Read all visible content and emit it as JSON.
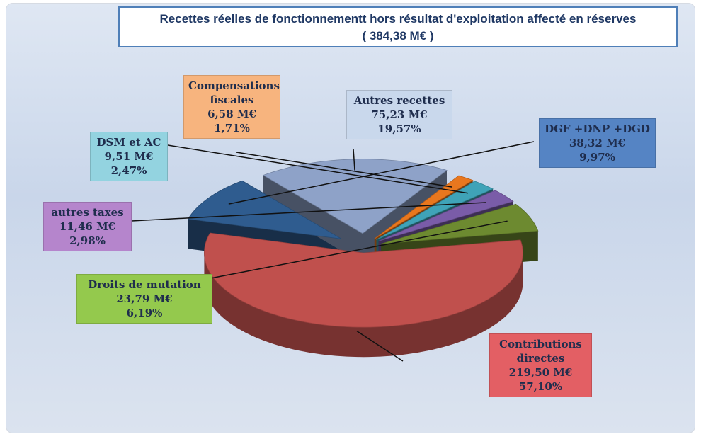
{
  "chart_data": {
    "type": "pie",
    "title": "Recettes réelles de fonctionnementt hors résultat d'exploitation affecté en réserves",
    "subtitle": "( 384,38 M€ )",
    "categories": [
      "Contributions directes",
      "DGF +DNP +DGD",
      "Autres recettes",
      "Compensations fiscales",
      "DSM et AC",
      "autres taxes",
      "Droits de mutation"
    ],
    "values": [
      219.5,
      38.32,
      75.23,
      6.58,
      9.51,
      11.46,
      23.79
    ],
    "value_labels": [
      "219,50 M€",
      "38,32 M€",
      "75,23 M€",
      "6,58 M€",
      "9,51 M€",
      "11,46 M€",
      "23,79 M€"
    ],
    "percentages": [
      57.1,
      9.97,
      19.57,
      1.71,
      2.47,
      2.98,
      6.19
    ],
    "percentage_labels": [
      "57,10%",
      "9,97%",
      "19,57%",
      "1,71%",
      "2,47%",
      "2,98%",
      "6,19%"
    ],
    "colors": [
      "#c0504d",
      "#2f5c8f",
      "#8ea2c8",
      "#e8771e",
      "#3fa3b8",
      "#7a5ca8",
      "#6d8a30"
    ],
    "label_colors": [
      "#e35f64",
      "#5584c4",
      "#c9d8ec",
      "#f7b47e",
      "#93d3e0",
      "#b585cc",
      "#94c94d"
    ]
  }
}
